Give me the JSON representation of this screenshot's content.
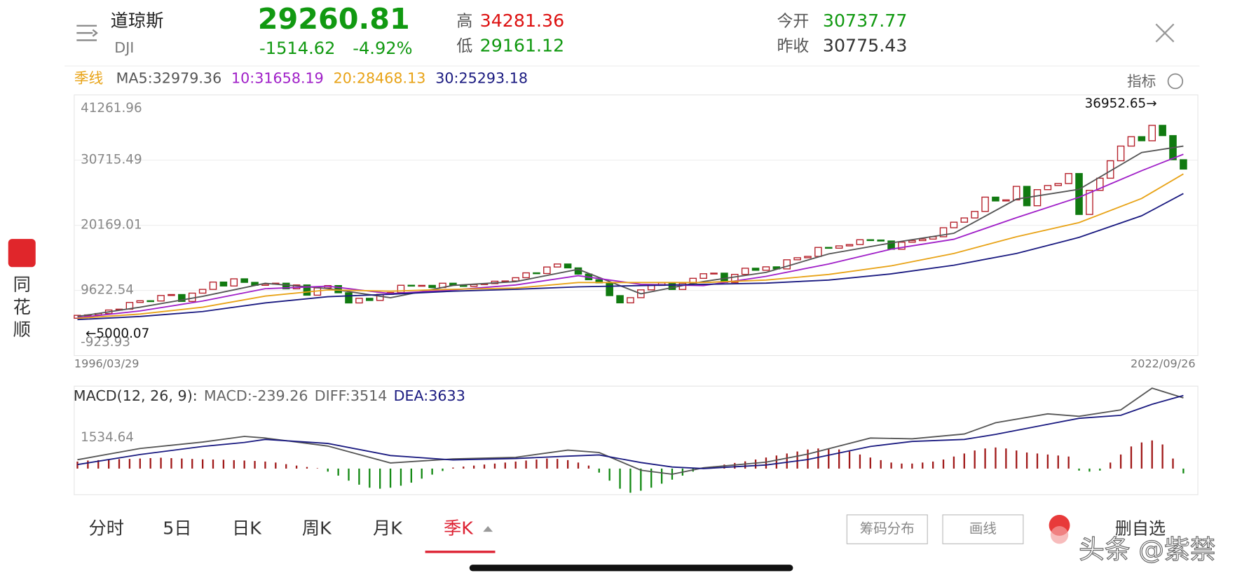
{
  "header": {
    "name": "道琼斯",
    "code": "DJI",
    "price": "29260.81",
    "change": "-1514.62",
    "change_pct": "-4.92%",
    "high_label": "高",
    "high": "34281.36",
    "low_label": "低",
    "low": "29161.12",
    "open_label": "今开",
    "open": "30737.77",
    "prev_label": "昨收",
    "prev": "30775.43"
  },
  "ma_legend": {
    "period": "季线",
    "items": [
      {
        "text": "MA5:32979.36",
        "color": "#555555"
      },
      {
        "text": "10:31658.19",
        "color": "#a020c8"
      },
      {
        "text": "20:28468.13",
        "color": "#e8a317"
      },
      {
        "text": "30:25293.18",
        "color": "#1a1a80"
      }
    ]
  },
  "indicator_button": "指标",
  "chart_data": {
    "type": "candlestick",
    "ylim": [
      -923.93,
      41261.96
    ],
    "yticks": [
      41261.96,
      30715.49,
      20169.01,
      9622.54,
      -923.93
    ],
    "grid": true,
    "start_date": "1996/03/29",
    "end_date": "2022/09/26",
    "up_color": "#b5202a",
    "down_color": "#117a11",
    "candles": {
      "open": [
        5117,
        5587,
        5655,
        5882,
        6448,
        6583,
        7673,
        7945,
        7908,
        8800,
        8952,
        7843,
        9181,
        9786,
        10971,
        10337,
        11497,
        10922,
        10448,
        10651,
        10787,
        9879,
        10502,
        8848,
        10022,
        10404,
        9243,
        7592,
        8342,
        7992,
        8985,
        9275,
        10454,
        10358,
        10435,
        10080,
        10783,
        10504,
        10275,
        10569,
        10718,
        11109,
        11150,
        11679,
        12463,
        12354,
        13409,
        13896,
        13265,
        12263,
        11350,
        10851,
        8776,
        7609,
        8447,
        9712,
        10428,
        10857,
        9774,
        10788,
        11578,
        12320,
        12414,
        10913,
        12218,
        13212,
        12880,
        13437,
        13104,
        14579,
        14910,
        15130,
        16577,
        16458,
        16827,
        17043,
        17823,
        17776,
        17620,
        16285,
        17425,
        17685,
        17930,
        18308,
        19763,
        20663,
        21350,
        22405,
        24719,
        24103,
        24271,
        26458,
        23327,
        25929,
        26600,
        26917,
        28538,
        21917,
        25813,
        27782,
        30606,
        32982,
        34503,
        33844,
        36338,
        34678,
        30775
      ],
      "close": [
        5587,
        5655,
        5882,
        6448,
        6583,
        7673,
        7945,
        7908,
        8800,
        8952,
        7843,
        9181,
        9786,
        10971,
        10337,
        11497,
        10922,
        10448,
        10651,
        10787,
        9879,
        10502,
        8848,
        10022,
        10404,
        9243,
        7592,
        8342,
        7992,
        8985,
        9275,
        10454,
        10358,
        10435,
        10080,
        10783,
        10504,
        10275,
        10569,
        10718,
        11109,
        11150,
        11679,
        12463,
        12354,
        13409,
        13896,
        13265,
        12263,
        11350,
        10851,
        8776,
        7609,
        8447,
        9712,
        10428,
        10857,
        9774,
        10788,
        11578,
        12320,
        12414,
        10913,
        12218,
        13212,
        12880,
        13437,
        13104,
        14579,
        14910,
        15130,
        16577,
        16458,
        16827,
        17043,
        17823,
        17776,
        17620,
        16285,
        17425,
        17685,
        17930,
        18308,
        19763,
        20663,
        21350,
        22405,
        24719,
        24103,
        24271,
        26458,
        23327,
        25929,
        26600,
        26917,
        28538,
        21917,
        25813,
        27782,
        30606,
        32982,
        34503,
        33844,
        36338,
        34678,
        30775,
        29260.81
      ]
    },
    "ma_x": [
      0,
      6,
      12,
      18,
      24,
      30,
      36,
      42,
      48,
      54,
      60,
      66,
      72,
      78,
      84,
      90,
      96,
      102,
      106
    ],
    "series": [
      {
        "name": "MA5",
        "color": "#555555",
        "values": [
          5400,
          6900,
          8658,
          10771,
          9931,
          8437,
          10432,
          11045,
          13037,
          9079,
          11063,
          12532,
          15531,
          17309,
          18870,
          24391,
          25980,
          31943,
          32979.36
        ]
      },
      {
        "name": "MA10",
        "color": "#a020c8",
        "values": [
          5200,
          6300,
          7900,
          9900,
          10300,
          9100,
          9700,
          10500,
          12000,
          10600,
          10400,
          11900,
          13900,
          16300,
          17900,
          21400,
          24700,
          29000,
          31658.19
        ]
      },
      {
        "name": "MA20",
        "color": "#e8a317",
        "values": [
          5100,
          5800,
          6900,
          8700,
          9700,
          9500,
          9800,
          10000,
          10900,
          10900,
          10900,
          11300,
          12200,
          13600,
          15600,
          18300,
          20600,
          24500,
          28468.13
        ]
      },
      {
        "name": "MA30",
        "color": "#1a1a80",
        "values": [
          4900,
          5400,
          6200,
          7600,
          8600,
          9000,
          9500,
          9800,
          10200,
          10400,
          10600,
          10800,
          11300,
          12300,
          13700,
          15600,
          18200,
          21700,
          25293.18
        ]
      }
    ],
    "annotations": [
      {
        "index": 103,
        "value": 36952.65,
        "label": "36952.65→"
      },
      {
        "index": 0,
        "value": 5000.07,
        "label": "←5000.07"
      }
    ]
  },
  "macd": {
    "type": "macd",
    "title": "MACD(12, 26, 9):",
    "macd_text": "MACD:-239.26",
    "diff_text": "DIFF:3514",
    "dea_text": "DEA:3633",
    "ylim": [
      -1300,
      4100
    ],
    "yticks": [
      1534.64
    ],
    "histogram": [
      350,
      400,
      420,
      450,
      470,
      480,
      500,
      520,
      540,
      520,
      500,
      480,
      460,
      450,
      440,
      420,
      400,
      380,
      350,
      300,
      220,
      150,
      80,
      20,
      -150,
      -350,
      -600,
      -800,
      -950,
      -1000,
      -950,
      -850,
      -700,
      -500,
      -300,
      -120,
      50,
      100,
      150,
      200,
      250,
      300,
      350,
      400,
      450,
      500,
      480,
      420,
      300,
      150,
      -200,
      -600,
      -1000,
      -1200,
      -1100,
      -950,
      -750,
      -550,
      -350,
      -150,
      50,
      120,
      200,
      280,
      360,
      450,
      550,
      650,
      750,
      850,
      950,
      1000,
      1000,
      950,
      850,
      700,
      550,
      420,
      300,
      250,
      250,
      300,
      350,
      450,
      600,
      750,
      900,
      1000,
      1050,
      1000,
      900,
      800,
      750,
      700,
      650,
      600,
      -100,
      -150,
      -100,
      300,
      700,
      1100,
      1300,
      1400,
      1200,
      500,
      -239.26
    ],
    "x": [
      0,
      6,
      12,
      16,
      18,
      24,
      30,
      36,
      42,
      47,
      50,
      54,
      57,
      60,
      66,
      70,
      76,
      80,
      85,
      88,
      93,
      96,
      100,
      103,
      106
    ],
    "diff": [
      440,
      1000,
      1320,
      1600,
      1520,
      1120,
      280,
      480,
      560,
      920,
      800,
      -80,
      -280,
      40,
      320,
      720,
      1520,
      1480,
      1720,
      2280,
      2720,
      2600,
      2920,
      4000,
      3514
    ],
    "dea": [
      200,
      700,
      1100,
      1300,
      1450,
      1250,
      650,
      430,
      500,
      620,
      680,
      300,
      80,
      0,
      180,
      450,
      1100,
      1350,
      1450,
      1700,
      2200,
      2500,
      2650,
      3200,
      3633
    ]
  },
  "tabs": [
    "分时",
    "5日",
    "日K",
    "周K",
    "月K",
    "季K"
  ],
  "buttons": [
    "筹码分布",
    "画线"
  ],
  "watchlist": "删自选",
  "side": [
    "同",
    "花",
    "顺"
  ],
  "watermark": "头条 @紫禁"
}
